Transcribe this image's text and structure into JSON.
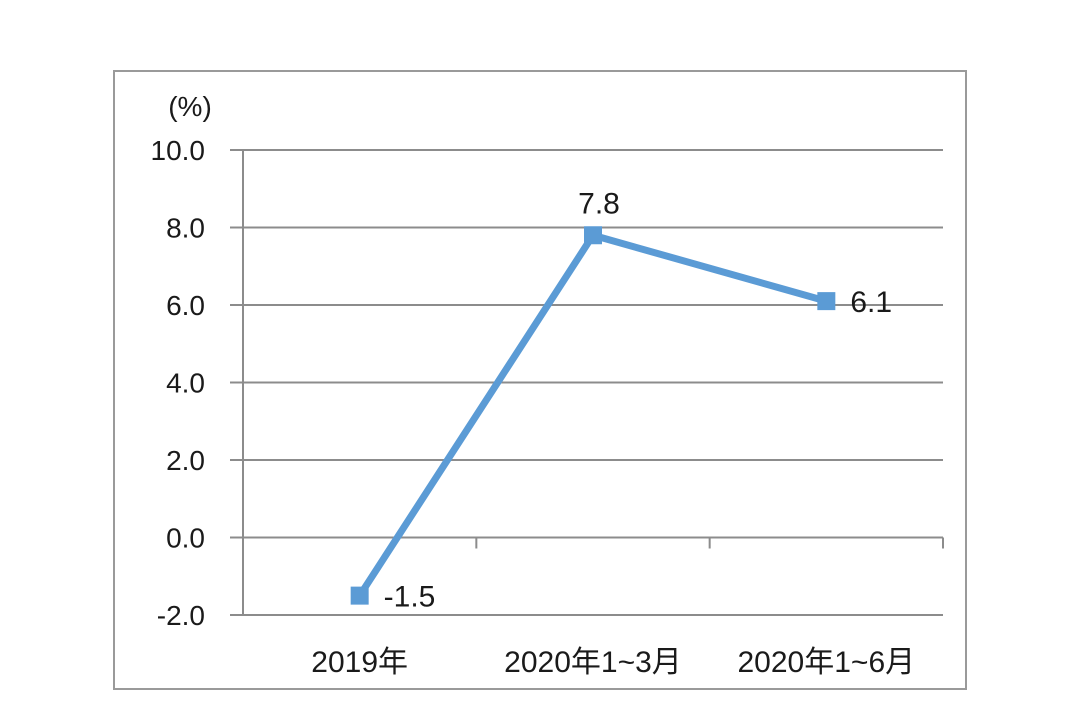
{
  "chart_data": {
    "type": "line",
    "title": "",
    "unit_label": "(%)",
    "categories": [
      "2019年",
      "2020年1~3月",
      "2020年1~6月"
    ],
    "series": [
      {
        "name": "",
        "values": [
          -1.5,
          7.8,
          6.1
        ]
      }
    ],
    "data_labels": [
      "-1.5",
      "7.8",
      "6.1"
    ],
    "data_label_positions": [
      "right",
      "above",
      "right"
    ],
    "y_ticks": [
      "10.0",
      "8.0",
      "6.0",
      "4.0",
      "2.0",
      "0.0",
      "-2.0"
    ],
    "ylim": [
      -2.0,
      10.0
    ],
    "y_step": 2.0,
    "xlabel": "",
    "ylabel": "(%)",
    "grid": true,
    "legend": false,
    "marker": "square",
    "colors": {
      "line": "#5B9BD5",
      "marker": "#5B9BD5",
      "grid": "#8C8C8C",
      "axis": "#8C8C8C",
      "text": "#1A1A1A",
      "frame_border": "#9A9A9A",
      "background": "#FFFFFF"
    }
  }
}
